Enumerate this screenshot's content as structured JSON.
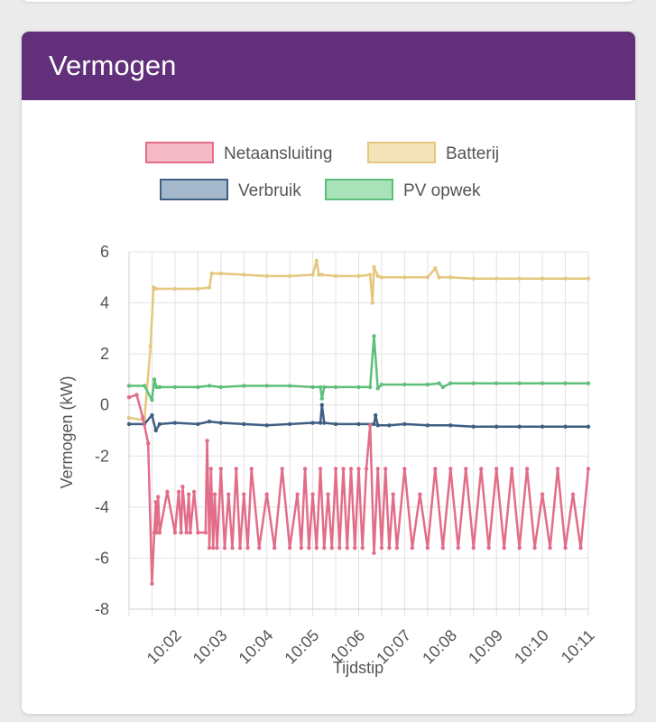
{
  "card": {
    "title": "Vermogen",
    "header_color": "#62307a"
  },
  "chart_data": {
    "type": "line",
    "xlabel": "Tijdstip",
    "ylabel": "Vermogen (kW)",
    "ylim": [
      -8,
      6
    ],
    "yticks": [
      6,
      4,
      2,
      0,
      -2,
      -4,
      -6,
      -8
    ],
    "xlim": [
      "10:01:00",
      "10:11:00"
    ],
    "xticks": [
      "10:02",
      "10:03",
      "10:04",
      "10:05",
      "10:06",
      "10:07",
      "10:08",
      "10:09",
      "10:10",
      "10:11"
    ],
    "grid": true,
    "legend_placement": "top",
    "series": [
      {
        "name": "Netaansluiting",
        "color": "#e26d89",
        "fill": "#f4b9c6",
        "x": [
          "10:01:00",
          "10:01:10",
          "10:01:18",
          "10:01:25",
          "10:01:30",
          "10:01:33",
          "10:01:35",
          "10:01:36",
          "10:01:38",
          "10:01:40",
          "10:01:50",
          "10:02:00",
          "10:02:05",
          "10:02:08",
          "10:02:10",
          "10:02:15",
          "10:02:18",
          "10:02:20",
          "10:02:25",
          "10:02:30",
          "10:02:40",
          "10:02:42",
          "10:02:45",
          "10:02:47",
          "10:02:50",
          "10:02:52",
          "10:02:55",
          "10:03:00",
          "10:03:05",
          "10:03:10",
          "10:03:15",
          "10:03:20",
          "10:03:25",
          "10:03:30",
          "10:03:35",
          "10:03:40",
          "10:03:50",
          "10:04:00",
          "10:04:10",
          "10:04:20",
          "10:04:30",
          "10:04:40",
          "10:04:45",
          "10:04:50",
          "10:04:55",
          "10:05:00",
          "10:05:05",
          "10:05:10",
          "10:05:15",
          "10:05:20",
          "10:05:25",
          "10:05:30",
          "10:05:35",
          "10:05:40",
          "10:05:45",
          "10:05:50",
          "10:05:55",
          "10:06:00",
          "10:06:05",
          "10:06:10",
          "10:06:15",
          "10:06:20",
          "10:06:25",
          "10:06:30",
          "10:06:35",
          "10:06:40",
          "10:06:45",
          "10:06:50",
          "10:07:00",
          "10:07:10",
          "10:07:20",
          "10:07:30",
          "10:07:40",
          "10:07:50",
          "10:08:00",
          "10:08:10",
          "10:08:20",
          "10:08:30",
          "10:08:40",
          "10:08:50",
          "10:09:00",
          "10:09:10",
          "10:09:20",
          "10:09:30",
          "10:09:40",
          "10:09:50",
          "10:10:00",
          "10:10:10",
          "10:10:20",
          "10:10:30",
          "10:10:40",
          "10:10:50",
          "10:11:00"
        ],
        "y": [
          0.3,
          0.4,
          -0.5,
          -1.5,
          -7.0,
          -5.0,
          -3.8,
          -5.0,
          -3.6,
          -5.0,
          -3.4,
          -5.0,
          -3.4,
          -5.0,
          -3.2,
          -5.0,
          -3.5,
          -5.0,
          -3.4,
          -5.0,
          -5.0,
          -1.4,
          -5.6,
          -2.5,
          -5.6,
          -3.5,
          -5.6,
          -2.5,
          -5.6,
          -3.5,
          -5.6,
          -2.5,
          -5.6,
          -3.5,
          -5.6,
          -2.5,
          -5.6,
          -3.5,
          -5.6,
          -2.5,
          -5.6,
          -3.5,
          -5.6,
          -2.5,
          -5.6,
          -3.5,
          -5.6,
          -2.5,
          -5.6,
          -3.5,
          -5.6,
          -2.5,
          -5.6,
          -2.5,
          -5.6,
          -2.5,
          -5.6,
          -2.5,
          -5.6,
          -2.5,
          -0.8,
          -5.8,
          -2.5,
          -5.6,
          -2.5,
          -5.6,
          -3.5,
          -5.6,
          -2.5,
          -5.6,
          -3.5,
          -5.6,
          -2.5,
          -5.6,
          -2.5,
          -5.6,
          -2.5,
          -5.6,
          -2.5,
          -5.6,
          -2.5,
          -5.6,
          -2.5,
          -5.6,
          -2.5,
          -5.6,
          -3.5,
          -5.6,
          -2.5,
          -5.6,
          -3.5,
          -5.6,
          -2.5
        ]
      },
      {
        "name": "Batterij",
        "color": "#e5c77e",
        "fill": "#f3e3b8",
        "x": [
          "10:01:00",
          "10:01:20",
          "10:01:28",
          "10:01:32",
          "10:01:35",
          "10:02:00",
          "10:02:30",
          "10:02:45",
          "10:02:48",
          "10:03:00",
          "10:03:30",
          "10:04:00",
          "10:04:30",
          "10:05:00",
          "10:05:05",
          "10:05:08",
          "10:05:12",
          "10:05:30",
          "10:06:00",
          "10:06:15",
          "10:06:18",
          "10:06:20",
          "10:06:25",
          "10:06:30",
          "10:07:00",
          "10:07:30",
          "10:07:40",
          "10:07:45",
          "10:08:00",
          "10:08:30",
          "10:09:00",
          "10:09:30",
          "10:10:00",
          "10:10:30",
          "10:11:00"
        ],
        "y": [
          -0.5,
          -0.6,
          2.3,
          4.6,
          4.55,
          4.55,
          4.55,
          4.6,
          5.15,
          5.15,
          5.1,
          5.05,
          5.05,
          5.1,
          5.65,
          5.1,
          5.1,
          5.05,
          5.05,
          5.1,
          4.0,
          5.4,
          5.05,
          5.0,
          5.0,
          5.0,
          5.35,
          5.0,
          5.0,
          4.95,
          4.95,
          4.95,
          4.95,
          4.95,
          4.95
        ]
      },
      {
        "name": "Verbruik",
        "color": "#3e5f82",
        "fill": "#a5b8cb",
        "x": [
          "10:01:00",
          "10:01:20",
          "10:01:30",
          "10:01:35",
          "10:01:40",
          "10:02:00",
          "10:02:30",
          "10:02:45",
          "10:03:00",
          "10:03:30",
          "10:04:00",
          "10:04:30",
          "10:05:00",
          "10:05:10",
          "10:05:12",
          "10:05:15",
          "10:05:30",
          "10:06:00",
          "10:06:20",
          "10:06:22",
          "10:06:25",
          "10:06:40",
          "10:07:00",
          "10:07:30",
          "10:08:00",
          "10:08:30",
          "10:09:00",
          "10:09:30",
          "10:10:00",
          "10:10:30",
          "10:11:00"
        ],
        "y": [
          -0.75,
          -0.75,
          -0.4,
          -1.0,
          -0.75,
          -0.7,
          -0.75,
          -0.65,
          -0.7,
          -0.75,
          -0.8,
          -0.75,
          -0.7,
          -0.7,
          0.0,
          -0.7,
          -0.75,
          -0.75,
          -0.75,
          -0.4,
          -0.8,
          -0.8,
          -0.75,
          -0.8,
          -0.8,
          -0.85,
          -0.85,
          -0.85,
          -0.85,
          -0.85,
          -0.85
        ]
      },
      {
        "name": "PV opwek",
        "color": "#5fbf7a",
        "fill": "#a8e2b8",
        "x": [
          "10:01:00",
          "10:01:20",
          "10:01:30",
          "10:01:33",
          "10:01:36",
          "10:01:40",
          "10:02:00",
          "10:02:30",
          "10:02:45",
          "10:03:00",
          "10:03:30",
          "10:04:00",
          "10:04:30",
          "10:05:00",
          "10:05:10",
          "10:05:12",
          "10:05:15",
          "10:05:30",
          "10:06:00",
          "10:06:15",
          "10:06:20",
          "10:06:25",
          "10:06:30",
          "10:07:00",
          "10:07:30",
          "10:07:45",
          "10:07:50",
          "10:08:00",
          "10:08:30",
          "10:09:00",
          "10:09:30",
          "10:10:00",
          "10:10:30",
          "10:11:00"
        ],
        "y": [
          0.75,
          0.75,
          0.2,
          1.0,
          0.7,
          0.7,
          0.7,
          0.7,
          0.75,
          0.7,
          0.75,
          0.75,
          0.75,
          0.7,
          0.7,
          0.25,
          0.7,
          0.7,
          0.7,
          0.7,
          2.7,
          0.65,
          0.8,
          0.8,
          0.8,
          0.85,
          0.7,
          0.85,
          0.85,
          0.85,
          0.85,
          0.85,
          0.85,
          0.85
        ]
      }
    ]
  }
}
